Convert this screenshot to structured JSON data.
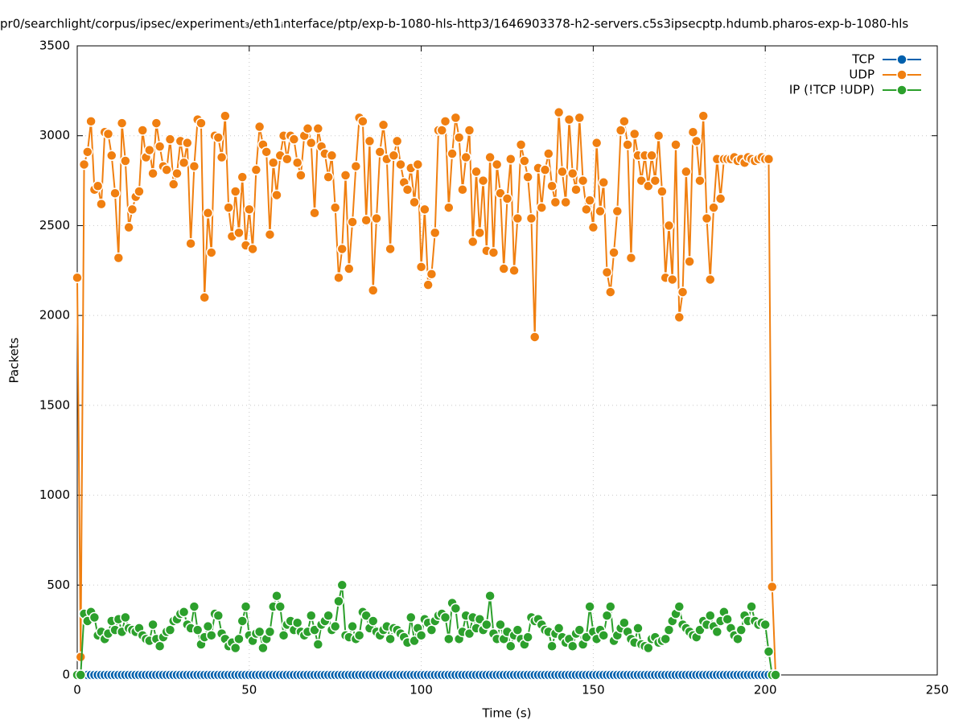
{
  "chart_data": {
    "type": "line",
    "title": "pr0/searchlight/corpus/ipsec/experiment₃/eth1ᵢnterface/ptp/exp-b-1080-hls-http3/1646903378-h2-servers.c5s3ipsecptp.hdumb.pharos-exp-b-1080-hls",
    "x_label": "Time (s)",
    "y_label": "Packets",
    "xlim": [
      0,
      250
    ],
    "xticks": [
      0,
      50,
      100,
      150,
      200,
      250
    ],
    "ylim": [
      0,
      3500
    ],
    "yticks": [
      0,
      500,
      1000,
      1500,
      2000,
      2500,
      3000,
      3500
    ],
    "grid": true,
    "legend": "top-right",
    "x": [
      0,
      1,
      2,
      3,
      4,
      5,
      6,
      7,
      8,
      9,
      10,
      11,
      12,
      13,
      14,
      15,
      16,
      17,
      18,
      19,
      20,
      21,
      22,
      23,
      24,
      25,
      26,
      27,
      28,
      29,
      30,
      31,
      32,
      33,
      34,
      35,
      36,
      37,
      38,
      39,
      40,
      41,
      42,
      43,
      44,
      45,
      46,
      47,
      48,
      49,
      50,
      51,
      52,
      53,
      54,
      55,
      56,
      57,
      58,
      59,
      60,
      61,
      62,
      63,
      64,
      65,
      66,
      67,
      68,
      69,
      70,
      71,
      72,
      73,
      74,
      75,
      76,
      77,
      78,
      79,
      80,
      81,
      82,
      83,
      84,
      85,
      86,
      87,
      88,
      89,
      90,
      91,
      92,
      93,
      94,
      95,
      96,
      97,
      98,
      99,
      100,
      101,
      102,
      103,
      104,
      105,
      106,
      107,
      108,
      109,
      110,
      111,
      112,
      113,
      114,
      115,
      116,
      117,
      118,
      119,
      120,
      121,
      122,
      123,
      124,
      125,
      126,
      127,
      128,
      129,
      130,
      131,
      132,
      133,
      134,
      135,
      136,
      137,
      138,
      139,
      140,
      141,
      142,
      143,
      144,
      145,
      146,
      147,
      148,
      149,
      150,
      151,
      152,
      153,
      154,
      155,
      156,
      157,
      158,
      159,
      160,
      161,
      162,
      163,
      164,
      165,
      166,
      167,
      168,
      169,
      170,
      171,
      172,
      173,
      174,
      175,
      176,
      177,
      178,
      179,
      180,
      181,
      182,
      183,
      184,
      185,
      186,
      187,
      188,
      189,
      190,
      191,
      192,
      193,
      194,
      195,
      196,
      197,
      198,
      199,
      200,
      201,
      202,
      203
    ],
    "series": [
      {
        "name": "TCP",
        "color": "#0060ad",
        "values": [
          0,
          0,
          0,
          0,
          0,
          0,
          0,
          0,
          0,
          0,
          0,
          0,
          0,
          0,
          0,
          0,
          0,
          0,
          0,
          0,
          0,
          0,
          0,
          0,
          0,
          0,
          0,
          0,
          0,
          0,
          0,
          0,
          0,
          0,
          0,
          0,
          0,
          0,
          0,
          0,
          0,
          0,
          0,
          0,
          0,
          0,
          0,
          0,
          0,
          0,
          0,
          0,
          0,
          0,
          0,
          0,
          0,
          0,
          0,
          0,
          0,
          0,
          0,
          0,
          0,
          0,
          0,
          0,
          0,
          0,
          0,
          0,
          0,
          0,
          0,
          0,
          0,
          0,
          0,
          0,
          0,
          0,
          0,
          0,
          0,
          0,
          0,
          0,
          0,
          0,
          0,
          0,
          0,
          0,
          0,
          0,
          0,
          0,
          0,
          0,
          0,
          0,
          0,
          0,
          0,
          0,
          0,
          0,
          0,
          0,
          0,
          0,
          0,
          0,
          0,
          0,
          0,
          0,
          0,
          0,
          0,
          0,
          0,
          0,
          0,
          0,
          0,
          0,
          0,
          0,
          0,
          0,
          0,
          0,
          0,
          0,
          0,
          0,
          0,
          0,
          0,
          0,
          0,
          0,
          0,
          0,
          0,
          0,
          0,
          0,
          0,
          0,
          0,
          0,
          0,
          0,
          0,
          0,
          0,
          0,
          0,
          0,
          0,
          0,
          0,
          0,
          0,
          0,
          0,
          0,
          0,
          0,
          0,
          0,
          0,
          0,
          0,
          0,
          0,
          0,
          0,
          0,
          0,
          0,
          0,
          0,
          0,
          0,
          0,
          0,
          0,
          0,
          0,
          0,
          0,
          0,
          0,
          0,
          0,
          0,
          0,
          0,
          0,
          0
        ]
      },
      {
        "name": "UDP",
        "color": "#f07f10",
        "values": [
          2210,
          100,
          2840,
          2910,
          3080,
          2700,
          2720,
          2620,
          3020,
          3010,
          2890,
          2680,
          2320,
          3070,
          2860,
          2490,
          2590,
          2660,
          2690,
          3030,
          2880,
          2920,
          2790,
          3070,
          2940,
          2830,
          2810,
          2980,
          2730,
          2790,
          2970,
          2850,
          2960,
          2400,
          2830,
          3090,
          3070,
          2100,
          2570,
          2350,
          3000,
          2990,
          2880,
          3110,
          2600,
          2440,
          2690,
          2460,
          2770,
          2390,
          2590,
          2370,
          2810,
          3050,
          2950,
          2910,
          2450,
          2850,
          2670,
          2890,
          3000,
          2870,
          3000,
          2980,
          2850,
          2780,
          3000,
          3040,
          2960,
          2570,
          3040,
          2940,
          2900,
          2770,
          2890,
          2600,
          2210,
          2370,
          2780,
          2260,
          2520,
          2830,
          3100,
          3080,
          2530,
          2970,
          2140,
          2540,
          2910,
          3060,
          2870,
          2370,
          2890,
          2970,
          2840,
          2740,
          2700,
          2820,
          2630,
          2840,
          2270,
          2590,
          2170,
          2230,
          2460,
          3030,
          3030,
          3080,
          2600,
          2900,
          3100,
          2990,
          2700,
          2880,
          3030,
          2410,
          2800,
          2460,
          2750,
          2360,
          2880,
          2350,
          2840,
          2680,
          2260,
          2650,
          2870,
          2250,
          2540,
          2950,
          2860,
          2770,
          2540,
          1880,
          2820,
          2600,
          2810,
          2900,
          2720,
          2630,
          3130,
          2800,
          2630,
          3090,
          2790,
          2700,
          3100,
          2750,
          2590,
          2640,
          2490,
          2960,
          2580,
          2740,
          2240,
          2130,
          2350,
          2580,
          3030,
          3080,
          2950,
          2320,
          3010,
          2890,
          2750,
          2890,
          2720,
          2890,
          2750,
          3000,
          2690,
          2210,
          2500,
          2200,
          2950,
          1990,
          2130,
          2800,
          2300,
          3020,
          2970,
          2750,
          3110,
          2540,
          2200,
          2600,
          2870,
          2650,
          2870,
          2870,
          2870,
          2880,
          2860,
          2870,
          2850,
          2880,
          2870,
          2860,
          2870,
          2880,
          2870,
          2870,
          490,
          0
        ]
      },
      {
        "name": "IP (!TCP  !UDP)",
        "color": "#2ca02c",
        "values": [
          0,
          0,
          340,
          300,
          350,
          320,
          220,
          240,
          200,
          230,
          300,
          250,
          310,
          240,
          320,
          260,
          250,
          240,
          260,
          220,
          200,
          190,
          280,
          200,
          160,
          210,
          240,
          250,
          300,
          310,
          340,
          350,
          280,
          260,
          380,
          250,
          170,
          210,
          270,
          220,
          340,
          330,
          230,
          200,
          160,
          180,
          150,
          200,
          300,
          380,
          220,
          190,
          230,
          240,
          150,
          200,
          240,
          380,
          440,
          380,
          220,
          280,
          300,
          250,
          290,
          240,
          220,
          240,
          330,
          250,
          170,
          280,
          300,
          330,
          250,
          270,
          410,
          500,
          220,
          210,
          270,
          200,
          220,
          350,
          330,
          260,
          300,
          240,
          220,
          250,
          270,
          200,
          260,
          250,
          230,
          210,
          180,
          320,
          190,
          260,
          220,
          310,
          290,
          250,
          300,
          330,
          340,
          320,
          200,
          400,
          370,
          200,
          240,
          330,
          230,
          320,
          260,
          310,
          250,
          280,
          440,
          230,
          200,
          280,
          200,
          240,
          160,
          220,
          250,
          200,
          170,
          210,
          320,
          300,
          310,
          280,
          250,
          240,
          160,
          230,
          260,
          210,
          180,
          200,
          160,
          230,
          250,
          170,
          210,
          380,
          240,
          200,
          250,
          220,
          330,
          380,
          190,
          220,
          260,
          290,
          240,
          200,
          180,
          260,
          170,
          160,
          150,
          200,
          210,
          180,
          190,
          200,
          250,
          300,
          340,
          380,
          280,
          260,
          240,
          220,
          210,
          250,
          300,
          280,
          330,
          270,
          240,
          300,
          350,
          310,
          260,
          220,
          200,
          250,
          330,
          300,
          380,
          300,
          280,
          290,
          280,
          130,
          0,
          0
        ]
      }
    ]
  }
}
